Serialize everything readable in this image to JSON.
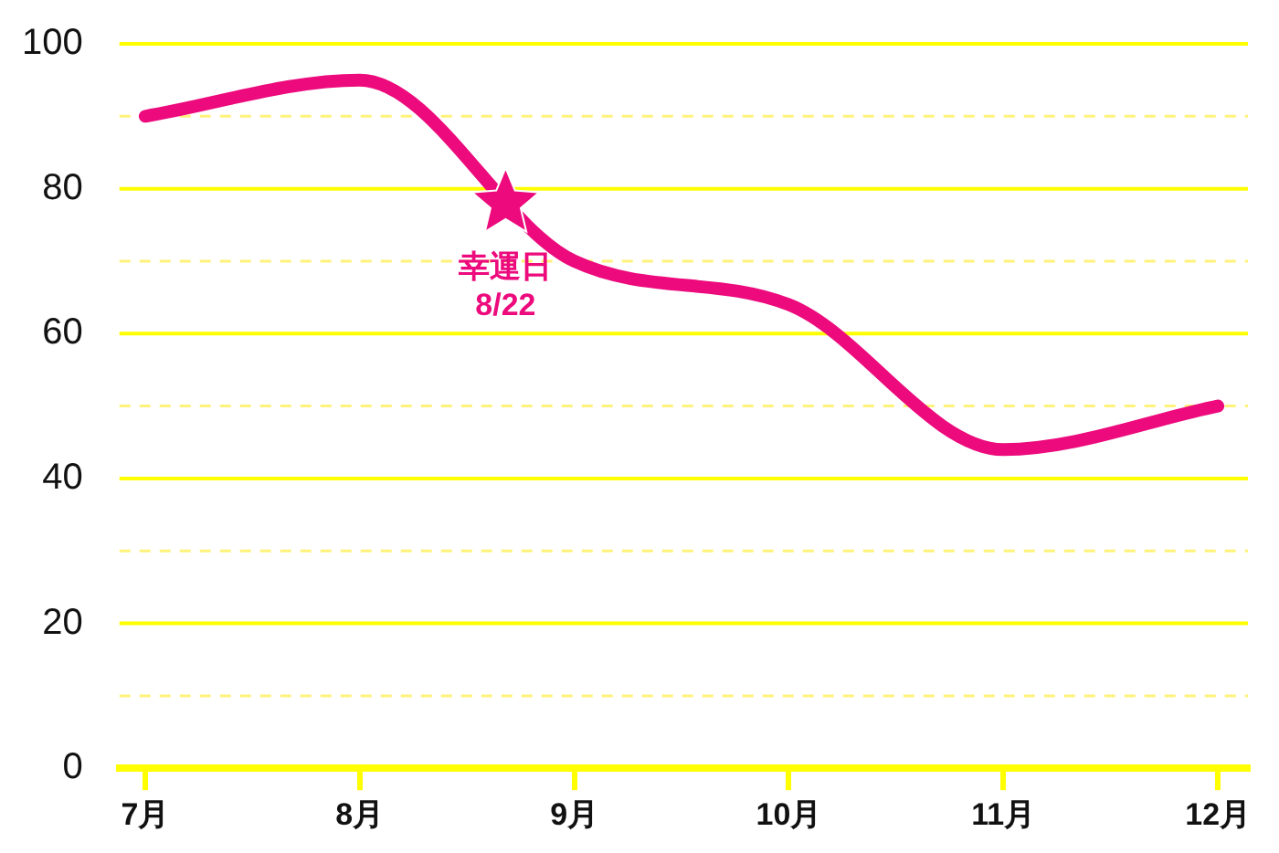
{
  "chart_data": {
    "type": "line",
    "x": [
      7,
      8,
      9,
      10,
      11,
      12
    ],
    "xlim": [
      6.88,
      12.14
    ],
    "xticks": [
      {
        "value": 7,
        "label": "7月"
      },
      {
        "value": 8,
        "label": "8月"
      },
      {
        "value": 9,
        "label": "9月"
      },
      {
        "value": 10,
        "label": "10月"
      },
      {
        "value": 11,
        "label": "11月"
      },
      {
        "value": 12,
        "label": "12月"
      }
    ],
    "ylim": [
      0,
      100
    ],
    "yticks": [
      0,
      {
        "value": 10,
        "label": null
      },
      20,
      {
        "value": 30,
        "label": null
      },
      40,
      {
        "value": 50,
        "label": null
      },
      60,
      {
        "value": 70,
        "label": null
      },
      80,
      {
        "value": 90,
        "label": null
      },
      100
    ],
    "grid": "y",
    "legend": false,
    "marker": "none",
    "series": [
      {
        "color": "#ec0a7c",
        "values": [
          90,
          95,
          70,
          64,
          44,
          50
        ]
      },
      {
        "type": "scatter",
        "color": "#ec0a7c",
        "marker": "star",
        "x": [
          8.68
        ],
        "values": [
          78
        ]
      }
    ],
    "annotations": [
      {
        "text": "幸運日\n8/22",
        "x": 8.68,
        "y": 78
      }
    ]
  }
}
